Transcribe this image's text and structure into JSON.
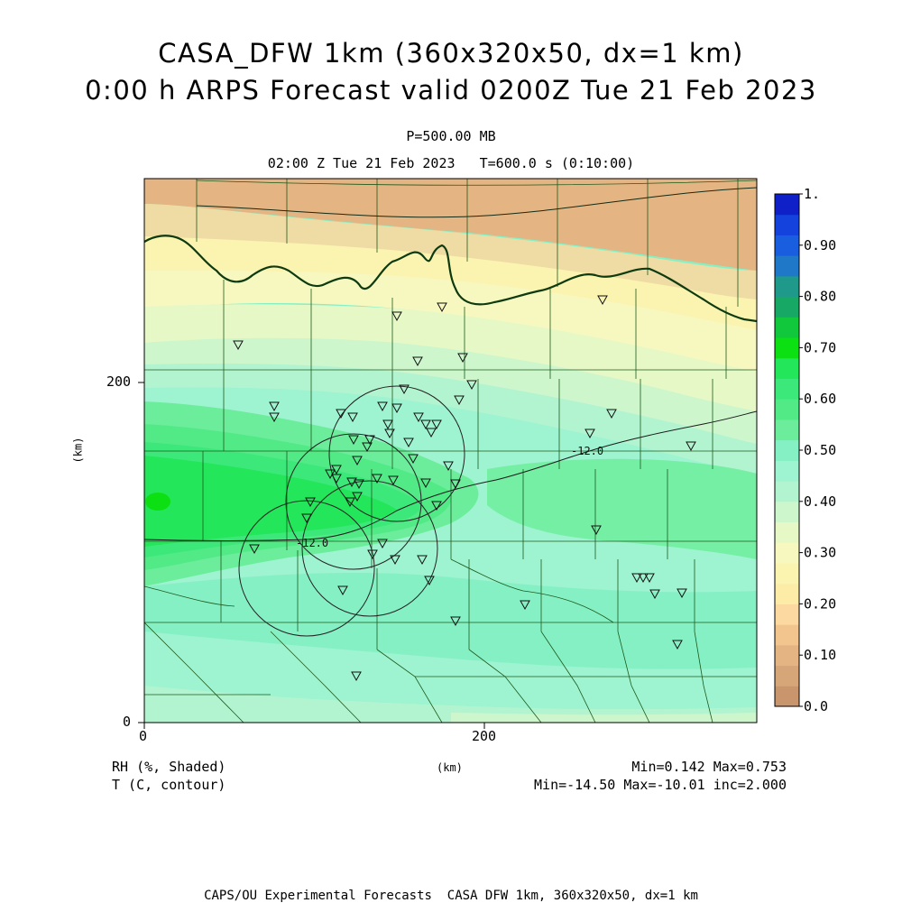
{
  "title_line1": "CASA_DFW 1km (360x320x50, dx=1 km)",
  "title_line2": "0:00 h ARPS Forecast valid 0200Z Tue 21 Feb 2023",
  "pressure_label": "P=500.00 MB",
  "time_label": "02:00 Z Tue 21 Feb 2023   T=600.0 s (0:10:00)",
  "axes": {
    "x_ticks": [
      "0",
      "200"
    ],
    "y_ticks": [
      "0",
      "200"
    ],
    "x_label": "(km)",
    "y_label": "(km)"
  },
  "legend": {
    "rh_label": "RH (%, Shaded)",
    "t_label": "T (C, contour)",
    "rh_minmax": "Min=0.142 Max=0.753",
    "t_minmax": "Min=-14.50 Max=-10.01 inc=2.000"
  },
  "colorbar": {
    "levels": [
      "0.0",
      "0.10",
      "0.20",
      "0.30",
      "0.40",
      "0.50",
      "0.60",
      "0.70",
      "0.80",
      "0.90",
      "1."
    ],
    "colors": [
      "#c8956c",
      "#d6a679",
      "#e4b483",
      "#f2c58f",
      "#fbd9a0",
      "#fdeca8",
      "#fbf4b0",
      "#f7f8c0",
      "#e6f8c5",
      "#cdf6cc",
      "#b3f4d0",
      "#9ef3d0",
      "#86f0c5",
      "#6ced9c",
      "#52ea86",
      "#3de87a",
      "#23e65a",
      "#0de012",
      "#11c83c",
      "#18a866",
      "#1f9a8a",
      "#1f78c8",
      "#1a5ee0",
      "#1442dc",
      "#0f20c8"
    ]
  },
  "contour_labels": [
    "-12.0",
    "-12.0"
  ],
  "footer": "CAPS/OU Experimental Forecasts  CASA DFW 1km, 360x320x50, dx=1 km"
}
